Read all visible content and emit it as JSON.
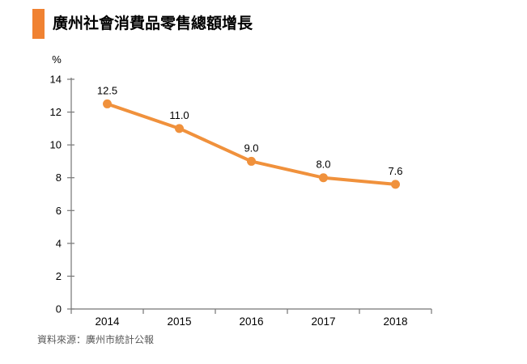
{
  "header": {
    "title": "廣州社會消費品零售總額增長"
  },
  "colors": {
    "accent": "#F08232",
    "series": "#F0913C",
    "axis": "#767676",
    "tick_label": "#000000",
    "data_label": "#000000",
    "source_text": "#595959"
  },
  "chart_data": {
    "type": "line",
    "title": "廣州社會消費品零售總額增長",
    "categories": [
      "2014",
      "2015",
      "2016",
      "2017",
      "2018"
    ],
    "values": [
      12.5,
      11.0,
      9.0,
      8.0,
      7.6
    ],
    "data_labels": [
      "12.5",
      "11.0",
      "9.0",
      "8.0",
      "7.6"
    ],
    "unit_label": "%",
    "xlabel": "",
    "ylabel": "%",
    "ylim": [
      0,
      14
    ],
    "yticks": [
      0,
      2,
      4,
      6,
      8,
      10,
      12,
      14
    ],
    "grid": false,
    "legend": "none",
    "marker": "circle"
  },
  "footer": {
    "source": "資料來源：廣州市統計公報"
  }
}
